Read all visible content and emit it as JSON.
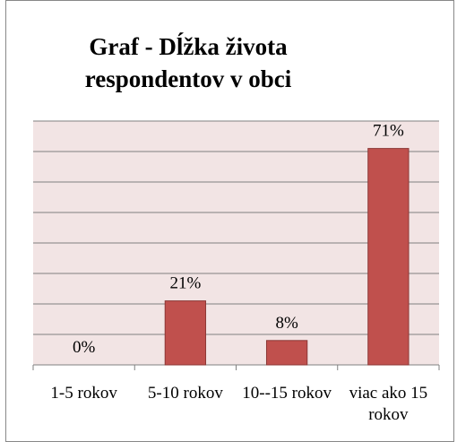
{
  "chart_data": {
    "type": "bar",
    "title": "Graf - Dĺžka života respondentov v obci",
    "categories": [
      "1-5 rokov",
      "5-10 rokov",
      "10--15 rokov",
      "viac ako 15 rokov"
    ],
    "values": [
      0,
      21,
      8,
      71
    ],
    "value_labels": [
      "0%",
      "21%",
      "8%",
      "71%"
    ],
    "color": "#c0504d",
    "ylim": [
      0,
      80
    ],
    "yticks": [
      0,
      10,
      20,
      30,
      40,
      50,
      60,
      70,
      80
    ],
    "grid": true
  }
}
